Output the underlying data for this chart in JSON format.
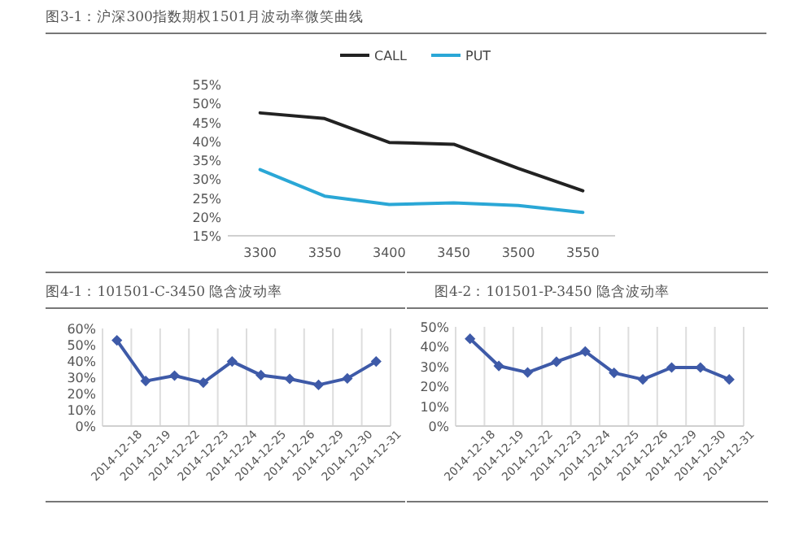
{
  "chart_data": [
    {
      "type": "line",
      "title": "图3-1：沪深300指数期权1501月波动率微笑曲线",
      "categories": [
        "3300",
        "3350",
        "3400",
        "3450",
        "3500",
        "3550"
      ],
      "series": [
        {
          "name": "CALL",
          "color": "#222222",
          "values": [
            47.5,
            46,
            39.7,
            39.2,
            32.8,
            26.9
          ]
        },
        {
          "name": "PUT",
          "color": "#2aa7d6",
          "values": [
            32.5,
            25.5,
            23.3,
            23.7,
            23,
            21.2
          ]
        }
      ],
      "ylim": [
        15,
        55
      ],
      "yticks": [
        {
          "value": 15,
          "label": "15%"
        },
        {
          "value": 20,
          "label": "20%"
        },
        {
          "value": 25,
          "label": "25%"
        },
        {
          "value": 30,
          "label": "30%"
        },
        {
          "value": 35,
          "label": "35%"
        },
        {
          "value": 40,
          "label": "40%"
        },
        {
          "value": 45,
          "label": "45%"
        },
        {
          "value": 50,
          "label": "50%"
        },
        {
          "value": 55,
          "label": "55%"
        }
      ],
      "legend": "top",
      "marker": "none"
    },
    {
      "type": "line",
      "title": "图4-1：101501-C-3450 隐含波动率",
      "categories": [
        "2014-12-18",
        "2014-12-19",
        "2014-12-22",
        "2014-12-23",
        "2014-12-24",
        "2014-12-25",
        "2014-12-26",
        "2014-12-29",
        "2014-12-30",
        "2014-12-31"
      ],
      "series": [
        {
          "color": "#3e5aa8",
          "values": [
            52.7,
            27.7,
            31,
            26.7,
            39.7,
            31.3,
            29,
            25.3,
            29.3,
            39.7
          ]
        }
      ],
      "ylim": [
        0,
        60
      ],
      "yticks": [
        {
          "value": 0,
          "label": "0%"
        },
        {
          "value": 10,
          "label": "10%"
        },
        {
          "value": 20,
          "label": "20%"
        },
        {
          "value": 30,
          "label": "30%"
        },
        {
          "value": 40,
          "label": "40%"
        },
        {
          "value": 50,
          "label": "50%"
        },
        {
          "value": 60,
          "label": "60%"
        }
      ],
      "grid": "x",
      "marker": "diamond"
    },
    {
      "type": "line",
      "title": "图4-2：101501-P-3450 隐含波动率",
      "categories": [
        "2014-12-18",
        "2014-12-19",
        "2014-12-22",
        "2014-12-23",
        "2014-12-24",
        "2014-12-25",
        "2014-12-26",
        "2014-12-29",
        "2014-12-30",
        "2014-12-31"
      ],
      "series": [
        {
          "color": "#3e5aa8",
          "values": [
            44,
            30.3,
            27,
            32.4,
            37.6,
            26.8,
            23.5,
            29.5,
            29.5,
            23.5
          ]
        }
      ],
      "ylim": [
        0,
        50
      ],
      "yticks": [
        {
          "value": 0,
          "label": "0%"
        },
        {
          "value": 10,
          "label": "10%"
        },
        {
          "value": 20,
          "label": "20%"
        },
        {
          "value": 30,
          "label": "30%"
        },
        {
          "value": 40,
          "label": "40%"
        },
        {
          "value": 50,
          "label": "50%"
        }
      ],
      "grid": "x",
      "marker": "diamond"
    }
  ]
}
